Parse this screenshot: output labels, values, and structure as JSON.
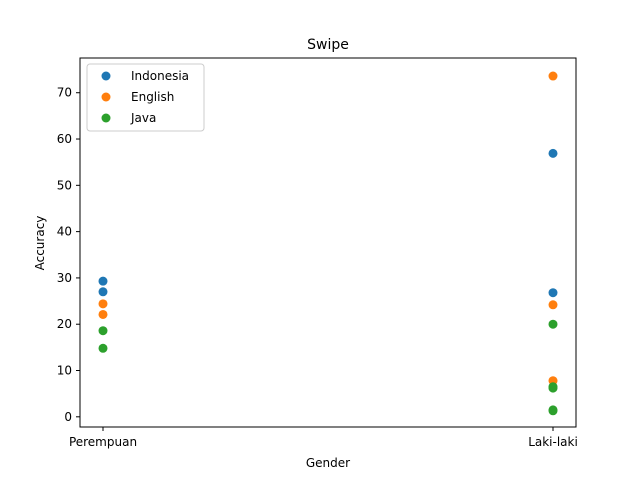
{
  "chart_data": {
    "type": "scatter",
    "title": "Swipe",
    "xlabel": "Gender",
    "ylabel": "Accuracy",
    "categories": [
      "Perempuan",
      "Laki-laki"
    ],
    "ylim": [
      -2.2,
      77.5
    ],
    "yticks": [
      0,
      10,
      20,
      30,
      40,
      50,
      60,
      70
    ],
    "grid": false,
    "legend_position": "top-left",
    "series": [
      {
        "name": "Indonesia",
        "color": "#1f77b4",
        "points": [
          {
            "x": "Perempuan",
            "y": 29.3
          },
          {
            "x": "Perempuan",
            "y": 27.0
          },
          {
            "x": "Laki-laki",
            "y": 56.9
          },
          {
            "x": "Laki-laki",
            "y": 26.8
          }
        ]
      },
      {
        "name": "English",
        "color": "#ff7f0e",
        "points": [
          {
            "x": "Perempuan",
            "y": 24.4
          },
          {
            "x": "Perempuan",
            "y": 22.1
          },
          {
            "x": "Laki-laki",
            "y": 73.6
          },
          {
            "x": "Laki-laki",
            "y": 24.2
          },
          {
            "x": "Laki-laki",
            "y": 7.8
          }
        ]
      },
      {
        "name": "Java",
        "color": "#2ca02c",
        "points": [
          {
            "x": "Perempuan",
            "y": 18.6
          },
          {
            "x": "Perempuan",
            "y": 14.8
          },
          {
            "x": "Laki-laki",
            "y": 20.0
          },
          {
            "x": "Laki-laki",
            "y": 6.5
          },
          {
            "x": "Laki-laki",
            "y": 6.2
          },
          {
            "x": "Laki-laki",
            "y": 1.5
          },
          {
            "x": "Laki-laki",
            "y": 1.3
          }
        ]
      }
    ]
  }
}
